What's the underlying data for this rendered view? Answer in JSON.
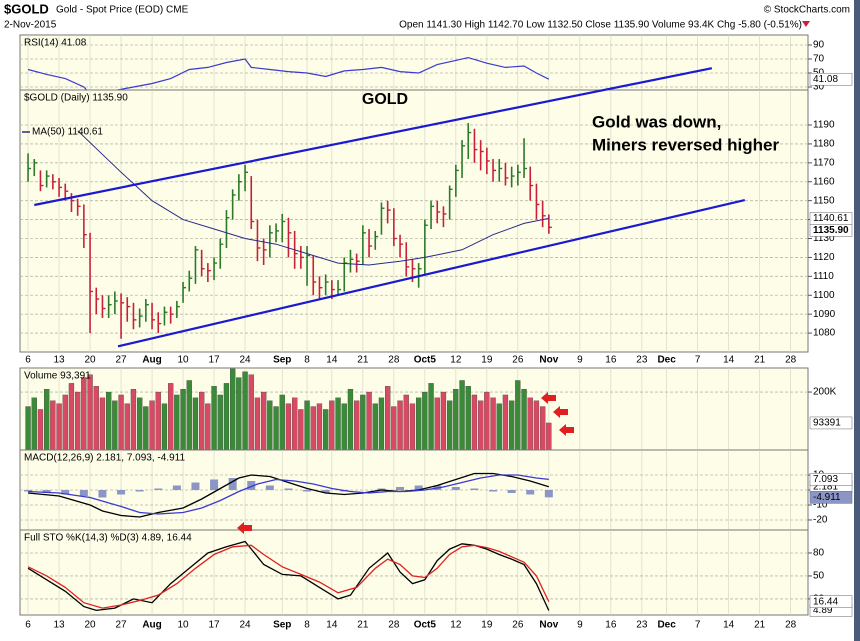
{
  "header": {
    "symbol": "$GOLD",
    "name": "Gold - Spot Price (EOD) CME",
    "date": "2-Nov-2015",
    "quote": "Open 1141.30  High 1142.70  Low 1132.50  Close 1135.90  Volume 93.4K  Chg -5.80 (-0.51%)",
    "brand": "© StockCharts.com"
  },
  "chart_data": [
    {
      "type": "line",
      "title": "RSI(14) 41.08",
      "color": "#3a3ad0",
      "x": [
        0,
        3,
        6,
        9,
        10,
        12,
        14,
        17,
        20,
        23,
        26,
        29,
        32,
        35,
        36,
        39,
        42,
        45,
        48,
        51,
        54,
        57,
        60,
        63,
        66,
        69,
        71,
        74,
        77,
        80,
        82,
        84
      ],
      "values": [
        55,
        48,
        42,
        30,
        20,
        22,
        25,
        30,
        35,
        42,
        55,
        58,
        65,
        70,
        58,
        55,
        52,
        50,
        45,
        53,
        55,
        58,
        52,
        50,
        62,
        68,
        72,
        64,
        58,
        60,
        50,
        41.08
      ],
      "ylim": [
        25.7,
        104.3
      ],
      "yticks": [
        90,
        70,
        50,
        30
      ],
      "grid": true
    },
    {
      "type": "ohlc",
      "title": "$GOLD (Daily) 1135.90",
      "up_color": "#2a7a2a",
      "down_color": "#c8203a",
      "xlim": [
        -1.3,
        125.8
      ],
      "xticks": [
        {
          "value": 0,
          "label": "6"
        },
        {
          "value": 5,
          "label": "13"
        },
        {
          "value": 10,
          "label": "20"
        },
        {
          "value": 15,
          "label": "27"
        },
        {
          "value": 20,
          "label": "Aug"
        },
        {
          "value": 25,
          "label": "10"
        },
        {
          "value": 30,
          "label": "17"
        },
        {
          "value": 35,
          "label": "24"
        },
        {
          "value": 41,
          "label": "Sep"
        },
        {
          "value": 45,
          "label": "8"
        },
        {
          "value": 49,
          "label": "14"
        },
        {
          "value": 54,
          "label": "21"
        },
        {
          "value": 59,
          "label": "28"
        },
        {
          "value": 64,
          "label": "Oct5"
        },
        {
          "value": 69,
          "label": "12"
        },
        {
          "value": 74,
          "label": "19"
        },
        {
          "value": 79,
          "label": "26"
        },
        {
          "value": 84,
          "label": "Nov"
        },
        {
          "value": 89,
          "label": "9"
        },
        {
          "value": 94,
          "label": "16"
        },
        {
          "value": 99,
          "label": "23"
        },
        {
          "value": 103,
          "label": "Dec"
        },
        {
          "value": 108,
          "label": "7"
        },
        {
          "value": 113,
          "label": "14"
        },
        {
          "value": 118,
          "label": "21"
        },
        {
          "value": 123,
          "label": "28"
        }
      ],
      "ylim": [
        1070,
        1208.5
      ],
      "yticks": [
        1080,
        1090,
        1100,
        1110,
        1120,
        1130,
        1140,
        1150,
        1160,
        1170,
        1180,
        1190
      ],
      "grid": true,
      "high": [
        1175,
        1172,
        1166,
        1166,
        1164,
        1162,
        1159,
        1154,
        1151,
        1148,
        1133,
        1104,
        1100,
        1100,
        1102,
        1101,
        1099,
        1096,
        1093,
        1098,
        1096,
        1091,
        1094,
        1094,
        1097,
        1107,
        1113,
        1126,
        1124,
        1117,
        1120,
        1130,
        1145,
        1156,
        1164,
        1169,
        1163,
        1140,
        1130,
        1137,
        1138,
        1143,
        1141,
        1134,
        1126,
        1126,
        1121,
        1110,
        1111,
        1108,
        1108,
        1120,
        1124,
        1122,
        1137,
        1135,
        1134,
        1149,
        1150,
        1146,
        1132,
        1128,
        1119,
        1117,
        1140,
        1150,
        1150,
        1147,
        1158,
        1169,
        1182,
        1191,
        1188,
        1182,
        1178,
        1172,
        1172,
        1170,
        1168,
        1169,
        1183,
        1168,
        1159,
        1150,
        1142.7
      ],
      "low": [
        1160,
        1163,
        1155,
        1157,
        1156,
        1152,
        1150,
        1144,
        1142,
        1125,
        1080,
        1090,
        1088,
        1088,
        1090,
        1077,
        1086,
        1082,
        1083,
        1086,
        1082,
        1080,
        1084,
        1085,
        1088,
        1096,
        1102,
        1106,
        1110,
        1107,
        1108,
        1114,
        1125,
        1140,
        1150,
        1155,
        1135,
        1118,
        1116,
        1120,
        1128,
        1128,
        1120,
        1114,
        1114,
        1105,
        1100,
        1098,
        1100,
        1098,
        1100,
        1102,
        1112,
        1112,
        1116,
        1120,
        1124,
        1132,
        1138,
        1126,
        1120,
        1110,
        1107,
        1104,
        1111,
        1135,
        1138,
        1136,
        1140,
        1152,
        1162,
        1172,
        1170,
        1166,
        1164,
        1160,
        1160,
        1158,
        1157,
        1158,
        1162,
        1150,
        1140,
        1136,
        1132.5
      ],
      "close": [
        1167,
        1170,
        1158,
        1163,
        1160,
        1157,
        1155,
        1150,
        1147,
        1132,
        1102,
        1098,
        1093,
        1095,
        1097,
        1096,
        1094,
        1087,
        1089,
        1095,
        1087,
        1085,
        1091,
        1090,
        1094,
        1104,
        1109,
        1124,
        1114,
        1113,
        1117,
        1127,
        1141,
        1153,
        1160,
        1165,
        1139,
        1125,
        1124,
        1133,
        1134,
        1139,
        1133,
        1122,
        1120,
        1121,
        1107,
        1104,
        1107,
        1103,
        1103,
        1117,
        1119,
        1118,
        1133,
        1126,
        1131,
        1146,
        1145,
        1130,
        1127,
        1115,
        1114,
        1114,
        1137,
        1147,
        1144,
        1143,
        1156,
        1166,
        1179,
        1186,
        1177,
        1176,
        1171,
        1166,
        1167,
        1162,
        1163,
        1165,
        1167,
        1158,
        1148,
        1142,
        1135.9
      ],
      "close_label": "1135.90",
      "ma": {
        "title": "MA(50) 1140.61",
        "color": "#2a2a8a",
        "x": [
          8,
          15,
          20,
          25,
          30,
          35,
          40,
          45,
          50,
          55,
          60,
          64,
          70,
          75,
          80,
          84
        ],
        "values": [
          1187,
          1165,
          1150,
          1140,
          1135,
          1130,
          1127,
          1122,
          1117,
          1116,
          1118,
          1120,
          1124,
          1132,
          1138,
          1140.61
        ]
      },
      "trendlines": [
        {
          "color": "#1a1ad0",
          "x": [
            1,
            110.3
          ],
          "values": [
            1147.7,
            1220
          ]
        },
        {
          "color": "#1a1ad0",
          "x": [
            14.5,
            115.6
          ],
          "values": [
            1073,
            1150.3
          ]
        }
      ],
      "annotations": [
        {
          "text": "GOLD",
          "color": "#1a1ad0"
        },
        {
          "text": "Gold was down,",
          "color": "#e02020"
        },
        {
          "text": "Miners reversed higher",
          "color": "#e02020"
        }
      ]
    },
    {
      "type": "bar",
      "title": "Volume 93,391",
      "ylim": [
        0,
        283000
      ],
      "yticks": [
        {
          "value": 200000,
          "label": "200K"
        }
      ],
      "grid": true,
      "values": [
        150000,
        180000,
        140000,
        210000,
        170000,
        160000,
        190000,
        230000,
        200000,
        250000,
        260000,
        220000,
        180000,
        200000,
        170000,
        190000,
        160000,
        210000,
        180000,
        150000,
        170000,
        200000,
        160000,
        230000,
        190000,
        210000,
        240000,
        180000,
        200000,
        160000,
        220000,
        190000,
        230000,
        280000,
        250000,
        270000,
        260000,
        180000,
        200000,
        170000,
        150000,
        190000,
        160000,
        180000,
        140000,
        170000,
        150000,
        160000,
        140000,
        170000,
        180000,
        160000,
        210000,
        170000,
        190000,
        200000,
        160000,
        180000,
        220000,
        150000,
        170000,
        190000,
        160000,
        180000,
        200000,
        230000,
        180000,
        200000,
        170000,
        210000,
        240000,
        220000,
        190000,
        170000,
        200000,
        180000,
        160000,
        190000,
        170000,
        240000,
        210000,
        180000,
        170000,
        150000,
        93391
      ],
      "up_color": "#3a8a3a",
      "down_color": "#d84a64"
    },
    {
      "type": "macd",
      "title": "MACD(12,26,9) 2.181, 7.093, -4.911",
      "ylim": [
        -26.7,
        26.7
      ],
      "yticks": [
        10,
        0,
        -10,
        -20
      ],
      "grid": true,
      "series": [
        {
          "color": "#000000",
          "x": [
            0,
            5,
            10,
            12,
            15,
            18,
            21,
            25,
            28,
            31,
            34,
            36,
            39,
            42,
            45,
            48,
            51,
            54,
            57,
            60,
            63,
            66,
            69,
            72,
            75,
            78,
            81,
            84
          ],
          "values": [
            -2,
            -4,
            -10,
            -14,
            -17,
            -18,
            -15,
            -12,
            -6,
            1,
            8,
            10,
            9,
            5,
            1,
            -2,
            -3,
            -2,
            0,
            -1,
            0,
            3,
            7,
            11,
            11,
            9,
            6,
            2.181
          ]
        },
        {
          "color": "#3a3ad0",
          "x": [
            0,
            5,
            10,
            15,
            18,
            21,
            25,
            28,
            31,
            34,
            37,
            40,
            43,
            46,
            49,
            52,
            55,
            58,
            61,
            64,
            67,
            70,
            73,
            76,
            79,
            82,
            84
          ],
          "values": [
            -1,
            -2,
            -5,
            -11,
            -15,
            -16,
            -15,
            -12,
            -7,
            -1,
            4,
            7,
            6,
            4,
            1,
            -1,
            -2,
            -1,
            -1,
            0,
            2,
            5,
            8,
            10,
            10,
            8,
            7.093
          ]
        }
      ],
      "histogram": {
        "color": "#8c96c6",
        "x": [
          0,
          3,
          6,
          9,
          12,
          15,
          18,
          21,
          24,
          27,
          30,
          33,
          36,
          39,
          42,
          45,
          48,
          51,
          54,
          57,
          60,
          63,
          66,
          69,
          72,
          75,
          78,
          81,
          84
        ],
        "values": [
          -1,
          -2,
          -3,
          -4,
          -5,
          -3,
          -1,
          1,
          3,
          5,
          7,
          8,
          6,
          3,
          1,
          -1,
          -2,
          -1,
          0,
          1,
          2,
          3,
          3,
          2,
          1,
          -1,
          -2,
          -3,
          -4.911
        ]
      }
    },
    {
      "type": "line",
      "title": "Full STO %K(14,3) %D(3) 4.89, 16.44",
      "ylim": [
        -1,
        110
      ],
      "yticks": [
        80,
        50,
        20
      ],
      "grid": true,
      "series": [
        {
          "color": "#000000",
          "x": [
            0,
            3,
            6,
            9,
            11,
            14,
            17,
            20,
            23,
            26,
            29,
            32,
            35,
            36,
            38,
            41,
            44,
            47,
            50,
            52,
            55,
            58,
            60,
            62,
            64,
            66,
            68,
            70,
            72,
            74,
            76,
            78,
            80,
            82,
            84
          ],
          "values": [
            60,
            45,
            30,
            10,
            5,
            8,
            20,
            15,
            40,
            60,
            80,
            88,
            95,
            85,
            65,
            52,
            50,
            35,
            20,
            25,
            60,
            80,
            55,
            40,
            45,
            70,
            85,
            92,
            90,
            85,
            78,
            72,
            65,
            40,
            4.89
          ]
        },
        {
          "color": "#e02020",
          "x": [
            0,
            3,
            6,
            9,
            12,
            15,
            18,
            21,
            24,
            27,
            30,
            33,
            36,
            38,
            41,
            44,
            47,
            50,
            53,
            56,
            58,
            60,
            62,
            64,
            66,
            68,
            70,
            72,
            74,
            76,
            78,
            80,
            82,
            84
          ],
          "values": [
            62,
            50,
            35,
            15,
            8,
            12,
            18,
            25,
            40,
            60,
            78,
            88,
            90,
            78,
            62,
            52,
            42,
            28,
            35,
            60,
            72,
            65,
            50,
            48,
            60,
            78,
            88,
            90,
            87,
            82,
            75,
            68,
            50,
            16.44
          ]
        }
      ]
    }
  ]
}
